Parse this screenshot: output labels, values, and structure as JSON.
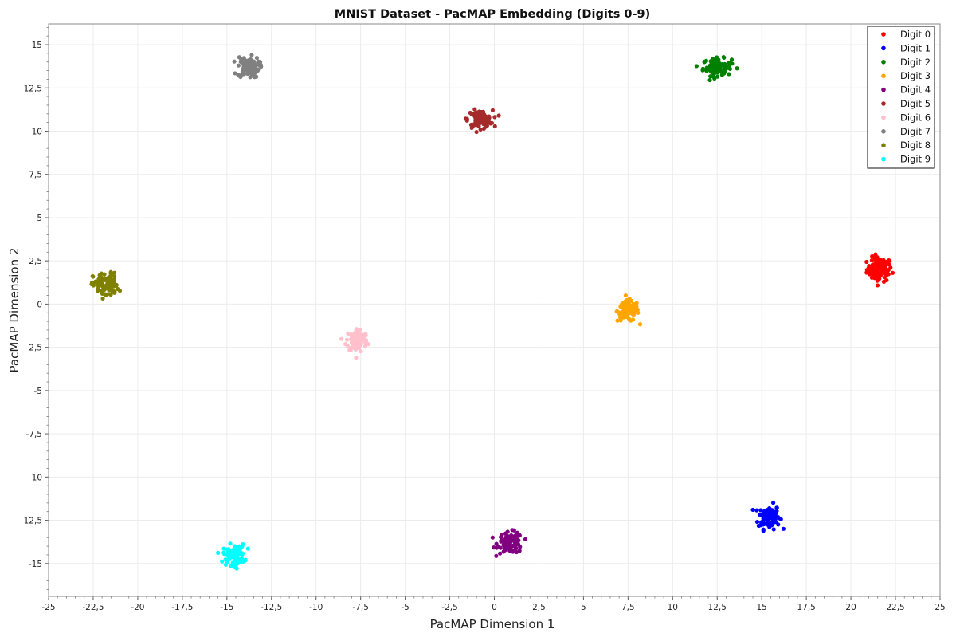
{
  "chart_data": {
    "type": "scatter",
    "title": "MNIST Dataset - PacMAP Embedding (Digits 0-9)",
    "xlabel": "PacMAP Dimension 1",
    "ylabel": "PacMAP Dimension 2",
    "xlim": [
      -25,
      25
    ],
    "ylim": [
      -16.9,
      16.2
    ],
    "x_ticks": [
      -25,
      -22.5,
      -20,
      -17.5,
      -15,
      -12.5,
      -10,
      -7.5,
      -5,
      -2.5,
      0,
      2.5,
      5,
      7.5,
      10,
      12.5,
      15,
      17.5,
      20,
      22.5,
      25
    ],
    "x_tick_labels": [
      "-25",
      "-22,5",
      "-20",
      "-17,5",
      "-15",
      "-12,5",
      "-10",
      "-7,5",
      "-5",
      "-2,5",
      "0",
      "2,5",
      "5",
      "7,5",
      "10",
      "12,5",
      "15",
      "17,5",
      "20",
      "22,5",
      "25"
    ],
    "y_ticks": [
      15,
      12.5,
      10,
      7.5,
      5,
      2.5,
      0,
      -2.5,
      -5,
      -7.5,
      -10,
      -12.5,
      -15
    ],
    "y_tick_labels": [
      "15",
      "12,5",
      "10",
      "7,5",
      "5",
      "2,5",
      "0",
      "-2,5",
      "-5",
      "-7,5",
      "-10",
      "-12,5",
      "-15"
    ],
    "grid": true,
    "legend_position": "top-right",
    "series": [
      {
        "name": "Digit 0",
        "color": "#ff0000",
        "center": [
          21.6,
          2.0
        ],
        "spread": [
          0.35,
          0.35
        ]
      },
      {
        "name": "Digit 1",
        "color": "#0000ff",
        "center": [
          15.4,
          -12.3
        ],
        "spread": [
          0.3,
          0.35
        ]
      },
      {
        "name": "Digit 2",
        "color": "#008000",
        "center": [
          12.5,
          13.7
        ],
        "spread": [
          0.4,
          0.25
        ]
      },
      {
        "name": "Digit 3",
        "color": "#ffa500",
        "center": [
          7.5,
          -0.4
        ],
        "spread": [
          0.3,
          0.3
        ]
      },
      {
        "name": "Digit 4",
        "color": "#800080",
        "center": [
          0.9,
          -13.8
        ],
        "spread": [
          0.35,
          0.3
        ]
      },
      {
        "name": "Digit 5",
        "color": "#a52a2a",
        "center": [
          -0.8,
          10.7
        ],
        "spread": [
          0.35,
          0.25
        ]
      },
      {
        "name": "Digit 6",
        "color": "#ffc0cb",
        "center": [
          -7.7,
          -2.1
        ],
        "spread": [
          0.3,
          0.35
        ]
      },
      {
        "name": "Digit 7",
        "color": "#808080",
        "center": [
          -13.8,
          13.7
        ],
        "spread": [
          0.3,
          0.3
        ]
      },
      {
        "name": "Digit 8",
        "color": "#808000",
        "center": [
          -21.8,
          1.1
        ],
        "spread": [
          0.35,
          0.35
        ]
      },
      {
        "name": "Digit 9",
        "color": "#00ffff",
        "center": [
          -14.6,
          -14.5
        ],
        "spread": [
          0.3,
          0.3
        ]
      }
    ]
  }
}
